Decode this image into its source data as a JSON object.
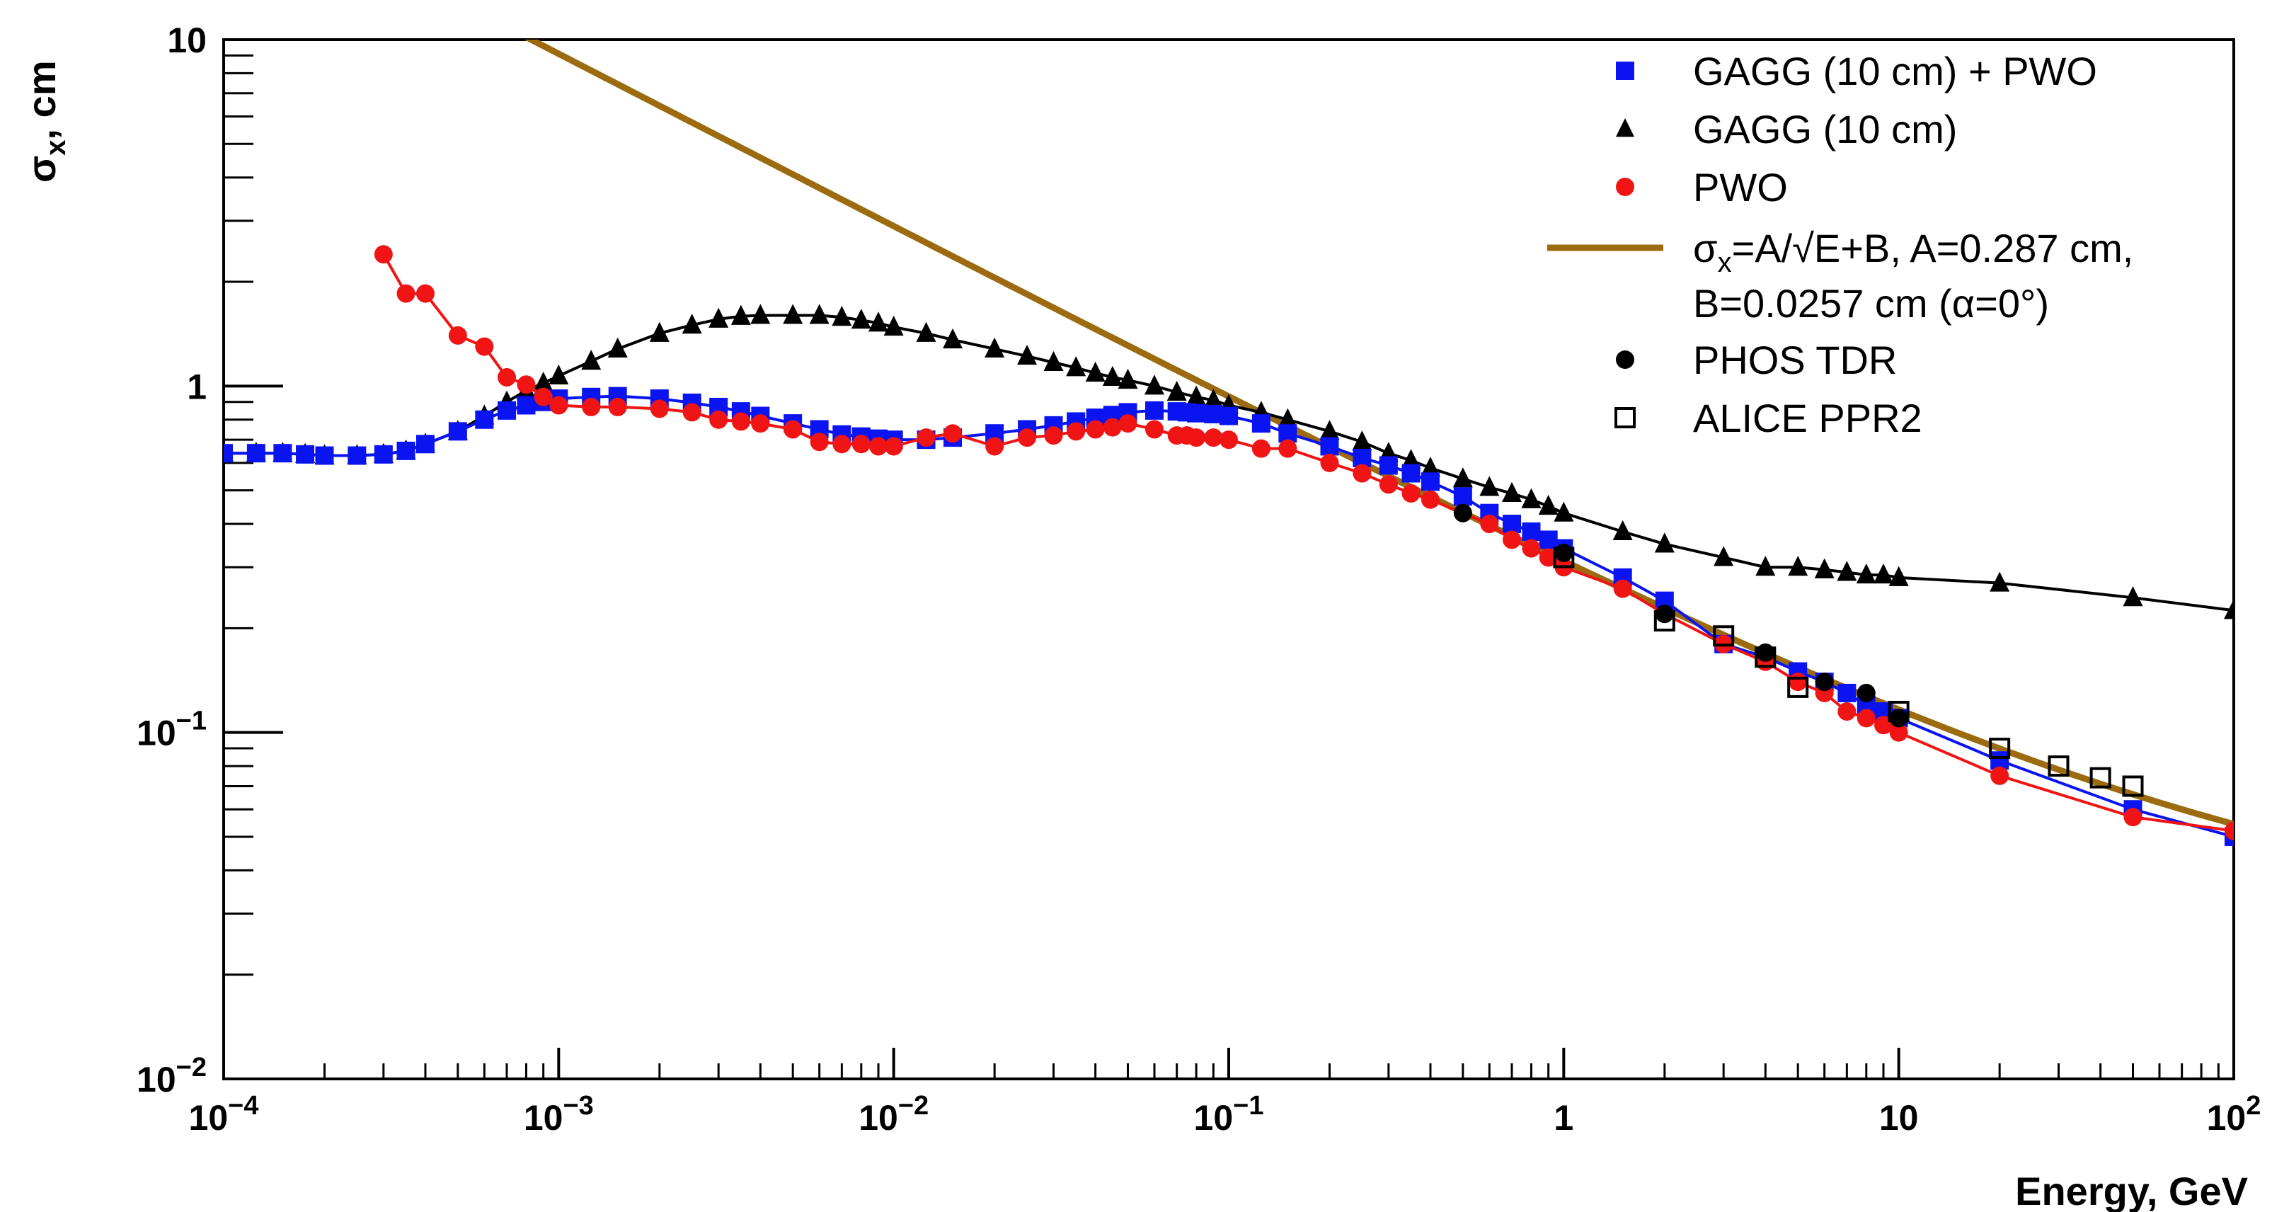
{
  "colors": {
    "gagg_pwo": "#0a14f0",
    "gagg": "#000000",
    "pwo": "#f01414",
    "fit": "#9c6b10",
    "phos": "#000000",
    "alice": "#000000"
  },
  "chart_data": {
    "type": "scatter",
    "title": "",
    "xlabel": "Energy, GeV",
    "ylabel_main": "σ",
    "ylabel_sub": "x",
    "ylabel_rest": ", cm",
    "xscale": "log",
    "yscale": "log",
    "xlim": [
      0.0001,
      100
    ],
    "ylim": [
      0.01,
      10
    ],
    "x_tick_labels": [
      {
        "base": "10",
        "exp": "−4"
      },
      {
        "base": "10",
        "exp": "−3"
      },
      {
        "base": "10",
        "exp": "−2"
      },
      {
        "base": "10",
        "exp": "−1"
      },
      {
        "base": "1",
        "exp": ""
      },
      {
        "base": "10",
        "exp": ""
      },
      {
        "base": "10",
        "exp": "2"
      }
    ],
    "y_tick_labels": [
      {
        "base": "10",
        "exp": "−2"
      },
      {
        "base": "10",
        "exp": "−1"
      },
      {
        "base": "1",
        "exp": ""
      },
      {
        "base": "10",
        "exp": ""
      }
    ],
    "legend": {
      "placement": "top-right",
      "entries": [
        {
          "key": "gagg_pwo",
          "label": "GAGG (10 cm) + PWO"
        },
        {
          "key": "gagg",
          "label": "GAGG (10 cm)"
        },
        {
          "key": "pwo",
          "label": "PWO"
        },
        {
          "key": "fit",
          "label_line1": "σ",
          "label_line1_sub": "x",
          "label_line1_rest": "=A/√E+B, A=0.287 cm,",
          "label_line2": "B=0.0257 cm (α=0°)"
        },
        {
          "key": "phos",
          "label": "PHOS TDR"
        },
        {
          "key": "alice",
          "label": "ALICE PPR2"
        }
      ]
    },
    "fit": {
      "A": 0.287,
      "B": 0.0257,
      "x_range": [
        0.0001,
        100
      ]
    },
    "series": [
      {
        "key": "gagg_pwo",
        "name": "GAGG (10 cm) + PWO",
        "marker": "square-filled",
        "line": true,
        "x": [
          0.0001,
          0.000125,
          0.00015,
          0.000175,
          0.0002,
          0.00025,
          0.0003,
          0.00035,
          0.0004,
          0.0005,
          0.0006,
          0.0007,
          0.0008,
          0.0009,
          0.001,
          0.00125,
          0.0015,
          0.002,
          0.0025,
          0.003,
          0.0035,
          0.004,
          0.005,
          0.006,
          0.007,
          0.008,
          0.009,
          0.01,
          0.0125,
          0.015,
          0.02,
          0.025,
          0.03,
          0.035,
          0.04,
          0.045,
          0.05,
          0.06,
          0.07,
          0.075,
          0.08,
          0.09,
          0.1,
          0.125,
          0.15,
          0.2,
          0.25,
          0.3,
          0.35,
          0.4,
          0.5,
          0.6,
          0.7,
          0.8,
          0.9,
          1,
          1.5,
          2,
          3,
          4,
          5,
          6,
          7,
          8,
          9,
          10,
          20,
          50,
          100
        ],
        "values": [
          0.64,
          0.64,
          0.64,
          0.635,
          0.63,
          0.63,
          0.635,
          0.65,
          0.68,
          0.74,
          0.8,
          0.85,
          0.88,
          0.9,
          0.92,
          0.93,
          0.935,
          0.92,
          0.895,
          0.87,
          0.845,
          0.82,
          0.78,
          0.75,
          0.725,
          0.715,
          0.705,
          0.7,
          0.7,
          0.71,
          0.73,
          0.75,
          0.77,
          0.79,
          0.81,
          0.825,
          0.84,
          0.85,
          0.845,
          0.84,
          0.835,
          0.83,
          0.82,
          0.78,
          0.73,
          0.67,
          0.62,
          0.59,
          0.56,
          0.53,
          0.48,
          0.43,
          0.4,
          0.38,
          0.36,
          0.34,
          0.28,
          0.24,
          0.18,
          0.165,
          0.15,
          0.14,
          0.13,
          0.12,
          0.115,
          0.11,
          0.083,
          0.06,
          0.05
        ]
      },
      {
        "key": "gagg",
        "name": "GAGG (10 cm)",
        "marker": "triangle-filled",
        "line": true,
        "x": [
          0.0001,
          0.000125,
          0.00015,
          0.000175,
          0.0002,
          0.00025,
          0.0003,
          0.00035,
          0.0004,
          0.0005,
          0.0006,
          0.0007,
          0.0008,
          0.0009,
          0.001,
          0.00125,
          0.0015,
          0.002,
          0.0025,
          0.003,
          0.0035,
          0.004,
          0.005,
          0.006,
          0.007,
          0.008,
          0.009,
          0.01,
          0.0125,
          0.015,
          0.02,
          0.025,
          0.03,
          0.035,
          0.04,
          0.045,
          0.05,
          0.06,
          0.07,
          0.08,
          0.09,
          0.1,
          0.125,
          0.15,
          0.2,
          0.25,
          0.3,
          0.35,
          0.4,
          0.5,
          0.6,
          0.7,
          0.8,
          0.9,
          1,
          1.5,
          2,
          3,
          4,
          5,
          6,
          7,
          8,
          9,
          10,
          20,
          50,
          100
        ],
        "values": [
          0.64,
          0.64,
          0.64,
          0.635,
          0.63,
          0.63,
          0.635,
          0.65,
          0.68,
          0.74,
          0.82,
          0.9,
          0.97,
          1.02,
          1.07,
          1.18,
          1.28,
          1.42,
          1.5,
          1.56,
          1.59,
          1.6,
          1.6,
          1.6,
          1.58,
          1.55,
          1.52,
          1.48,
          1.42,
          1.36,
          1.28,
          1.22,
          1.17,
          1.13,
          1.09,
          1.06,
          1.04,
          1,
          0.96,
          0.93,
          0.91,
          0.88,
          0.84,
          0.8,
          0.74,
          0.69,
          0.64,
          0.61,
          0.58,
          0.54,
          0.51,
          0.49,
          0.47,
          0.45,
          0.43,
          0.38,
          0.35,
          0.32,
          0.3,
          0.3,
          0.295,
          0.29,
          0.285,
          0.285,
          0.28,
          0.27,
          0.245,
          0.225
        ]
      },
      {
        "key": "pwo",
        "name": "PWO",
        "marker": "circle-filled",
        "line": true,
        "x": [
          0.0003,
          0.00035,
          0.0004,
          0.0005,
          0.0006,
          0.0007,
          0.0008,
          0.0009,
          0.001,
          0.00125,
          0.0015,
          0.002,
          0.0025,
          0.003,
          0.0035,
          0.004,
          0.005,
          0.006,
          0.007,
          0.008,
          0.009,
          0.01,
          0.0125,
          0.015,
          0.02,
          0.025,
          0.03,
          0.035,
          0.04,
          0.045,
          0.05,
          0.06,
          0.07,
          0.075,
          0.08,
          0.09,
          0.1,
          0.125,
          0.15,
          0.2,
          0.25,
          0.3,
          0.35,
          0.4,
          0.5,
          0.6,
          0.7,
          0.8,
          0.9,
          1,
          1.5,
          2,
          3,
          4,
          5,
          6,
          7,
          8,
          9,
          10,
          20,
          50,
          100
        ],
        "values": [
          2.4,
          1.85,
          1.85,
          1.4,
          1.3,
          1.06,
          1.01,
          0.93,
          0.88,
          0.87,
          0.87,
          0.86,
          0.84,
          0.8,
          0.79,
          0.78,
          0.75,
          0.69,
          0.68,
          0.68,
          0.67,
          0.67,
          0.71,
          0.73,
          0.67,
          0.71,
          0.72,
          0.74,
          0.75,
          0.76,
          0.78,
          0.75,
          0.72,
          0.72,
          0.71,
          0.71,
          0.7,
          0.66,
          0.66,
          0.6,
          0.56,
          0.52,
          0.49,
          0.47,
          0.43,
          0.4,
          0.36,
          0.34,
          0.32,
          0.3,
          0.26,
          0.22,
          0.18,
          0.16,
          0.14,
          0.13,
          0.115,
          0.11,
          0.105,
          0.1,
          0.075,
          0.057,
          0.052
        ]
      },
      {
        "key": "phos",
        "name": "PHOS TDR",
        "marker": "circle-filled",
        "line": false,
        "x": [
          0.5,
          1,
          2,
          4,
          6,
          8,
          10
        ],
        "values": [
          0.43,
          0.33,
          0.22,
          0.17,
          0.14,
          0.13,
          0.11
        ]
      },
      {
        "key": "alice",
        "name": "ALICE PPR2",
        "marker": "square-open",
        "line": false,
        "x": [
          1,
          2,
          3,
          4,
          5,
          10,
          20,
          30,
          40,
          50
        ],
        "values": [
          0.32,
          0.21,
          0.19,
          0.165,
          0.135,
          0.115,
          0.09,
          0.08,
          0.074,
          0.07
        ]
      }
    ]
  }
}
